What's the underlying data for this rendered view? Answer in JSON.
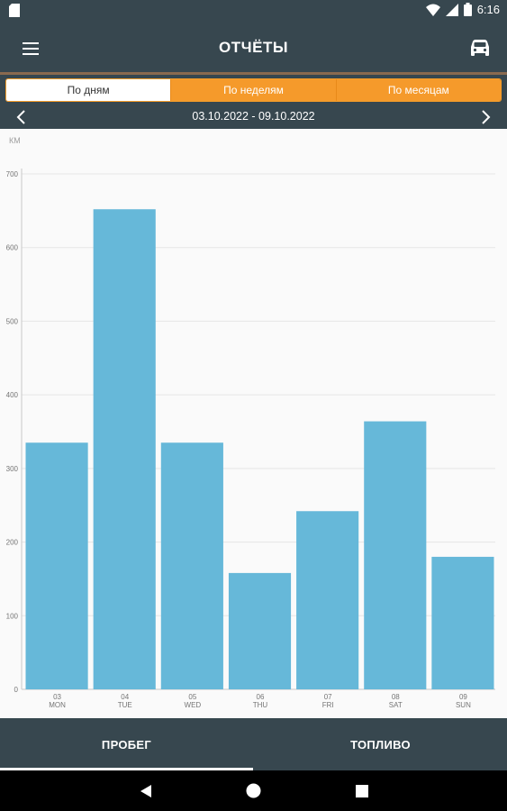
{
  "status_bar": {
    "time": "6:16",
    "icons": [
      "sim-card-icon",
      "wifi-icon",
      "signal-icon",
      "battery-icon"
    ]
  },
  "app_bar": {
    "title": "ОТЧЁТЫ",
    "menu_icon": "menu-icon",
    "action_icon": "car-icon"
  },
  "period_tabs": [
    {
      "label": "По дням",
      "active": true
    },
    {
      "label": "По неделям",
      "active": false
    },
    {
      "label": "По месяцам",
      "active": false
    }
  ],
  "date_nav": {
    "range": "03.10.2022 - 09.10.2022",
    "prev_icon": "chevron-left-icon",
    "next_icon": "chevron-right-icon"
  },
  "chart_data": {
    "type": "bar",
    "ylabel": "КМ",
    "ylim": [
      0,
      700
    ],
    "yticks": [
      0,
      100,
      200,
      300,
      400,
      500,
      600,
      700
    ],
    "categories": [
      {
        "day": "03",
        "weekday": "MON"
      },
      {
        "day": "04",
        "weekday": "TUE"
      },
      {
        "day": "05",
        "weekday": "WED"
      },
      {
        "day": "06",
        "weekday": "THU"
      },
      {
        "day": "07",
        "weekday": "FRI"
      },
      {
        "day": "08",
        "weekday": "SAT"
      },
      {
        "day": "09",
        "weekday": "SUN"
      }
    ],
    "values": [
      335,
      652,
      335,
      158,
      242,
      364,
      180
    ],
    "bar_color": "#66b8d9",
    "grid": true
  },
  "bottom_tabs": [
    {
      "label": "ПРОБЕГ",
      "active": true
    },
    {
      "label": "ТОПЛИВО",
      "active": false
    }
  ],
  "system_nav": {
    "icons": [
      "back-icon",
      "home-icon",
      "recents-icon"
    ]
  },
  "colors": {
    "primary": "#37474f",
    "accent": "#f59a2b",
    "bar": "#66b8d9"
  }
}
